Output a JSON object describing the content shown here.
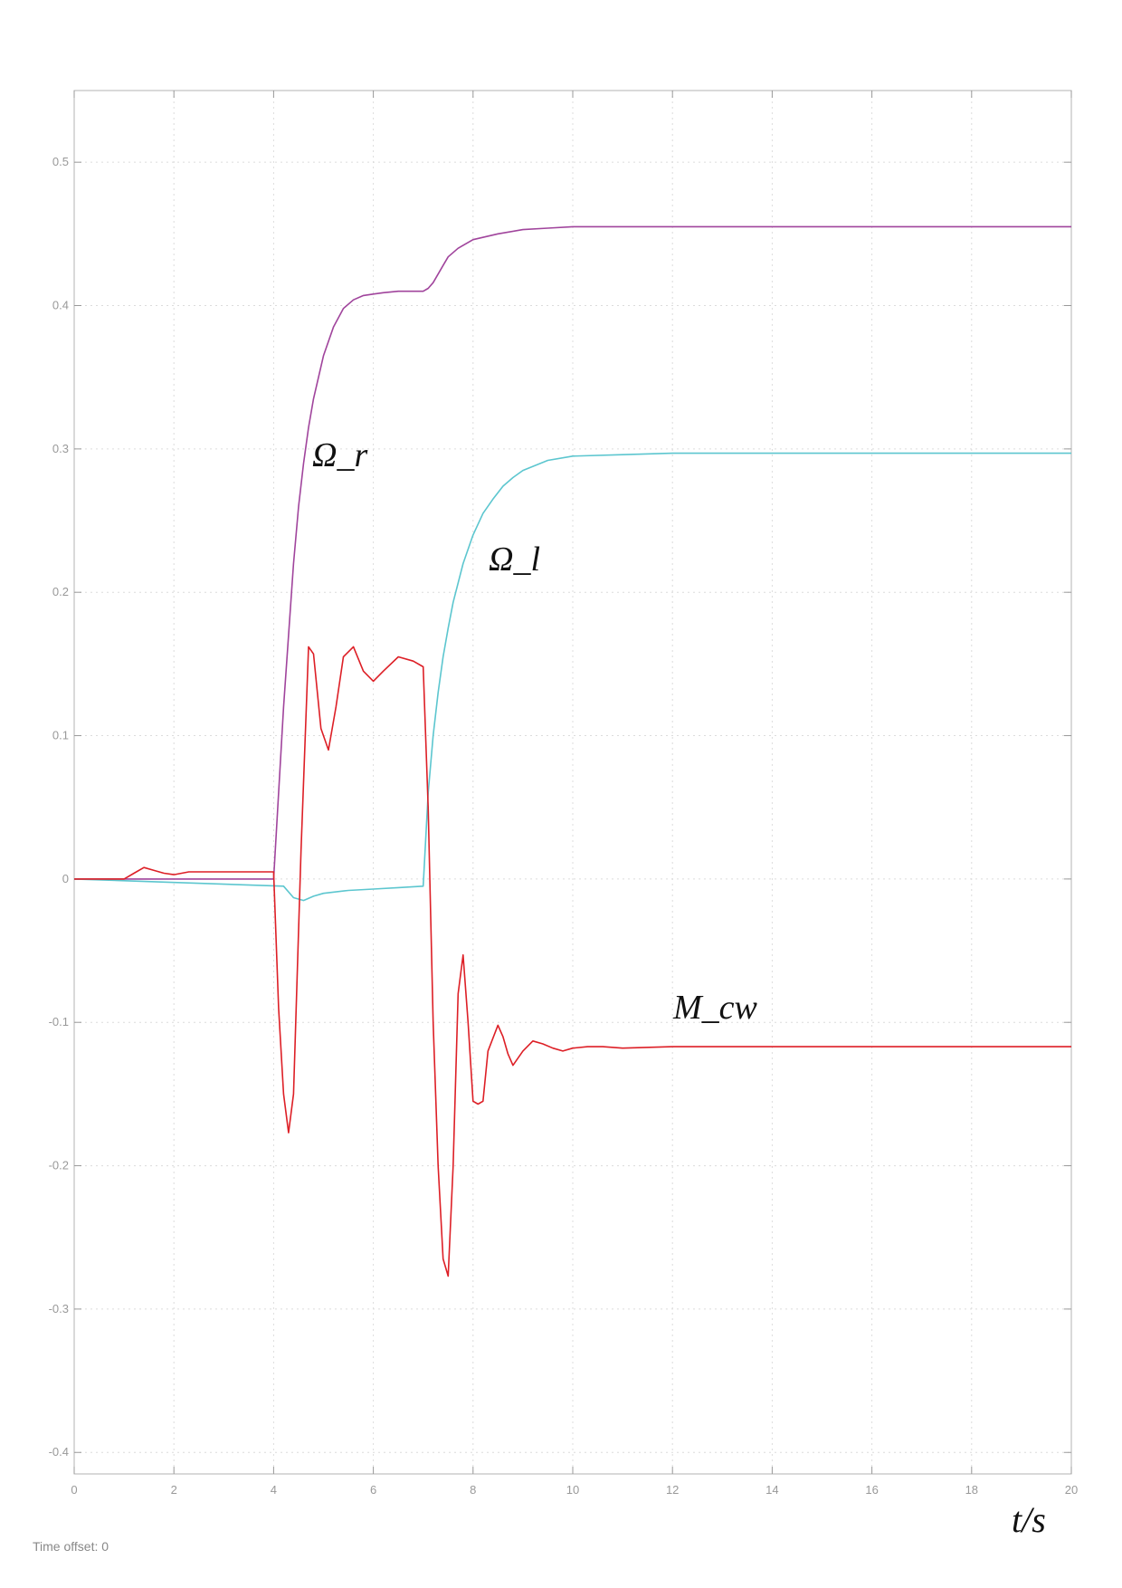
{
  "chart_data": {
    "type": "line",
    "xlabel": "t/s",
    "ylabel": "",
    "xlim": [
      0,
      20
    ],
    "ylim": [
      -0.415,
      0.55
    ],
    "grid": true,
    "x_ticks": [
      0,
      2,
      4,
      6,
      8,
      10,
      12,
      14,
      16,
      18,
      20
    ],
    "y_ticks": [
      -0.4,
      -0.3,
      -0.2,
      -0.1,
      0,
      0.1,
      0.2,
      0.3,
      0.4,
      0.5
    ],
    "x_tick_labels": [
      "0",
      "2",
      "4",
      "6",
      "8",
      "10",
      "12",
      "14",
      "16",
      "18",
      "20"
    ],
    "y_tick_labels": [
      "-0.4",
      "-0.3",
      "-0.2",
      "-0.1",
      "0",
      "0.1",
      "0.2",
      "0.3",
      "0.4",
      "0.5"
    ],
    "series": [
      {
        "name": "Ω_r",
        "color": "#a0449c",
        "x": [
          0,
          4,
          4.1,
          4.2,
          4.3,
          4.4,
          4.5,
          4.6,
          4.7,
          4.8,
          4.9,
          5.0,
          5.2,
          5.4,
          5.6,
          5.8,
          6.0,
          6.2,
          6.5,
          7.0,
          7.1,
          7.2,
          7.3,
          7.4,
          7.5,
          7.7,
          8.0,
          8.5,
          9.0,
          9.5,
          10,
          12,
          15,
          20
        ],
        "y": [
          0,
          0,
          0.06,
          0.12,
          0.17,
          0.22,
          0.26,
          0.29,
          0.315,
          0.335,
          0.35,
          0.365,
          0.385,
          0.398,
          0.404,
          0.407,
          0.408,
          0.409,
          0.41,
          0.41,
          0.412,
          0.416,
          0.422,
          0.428,
          0.434,
          0.44,
          0.446,
          0.45,
          0.453,
          0.454,
          0.455,
          0.455,
          0.455,
          0.455
        ]
      },
      {
        "name": "Ω_l",
        "color": "#5cc6cf",
        "x": [
          0,
          4.2,
          4.4,
          4.6,
          4.8,
          5.0,
          5.5,
          6.0,
          6.5,
          7.0,
          7.1,
          7.2,
          7.3,
          7.4,
          7.5,
          7.6,
          7.8,
          8.0,
          8.2,
          8.4,
          8.6,
          8.8,
          9.0,
          9.5,
          10,
          11,
          12,
          14,
          16,
          20
        ],
        "y": [
          0,
          -0.005,
          -0.013,
          -0.015,
          -0.012,
          -0.01,
          -0.008,
          -0.007,
          -0.006,
          -0.005,
          0.06,
          0.1,
          0.13,
          0.155,
          0.175,
          0.193,
          0.22,
          0.24,
          0.255,
          0.265,
          0.274,
          0.28,
          0.285,
          0.292,
          0.295,
          0.296,
          0.297,
          0.297,
          0.297,
          0.297
        ]
      },
      {
        "name": "M_cw",
        "color": "#dd1f26",
        "x": [
          0,
          1.0,
          1.2,
          1.4,
          1.6,
          1.8,
          2.0,
          2.3,
          2.7,
          3.0,
          3.5,
          4.0,
          4.1,
          4.2,
          4.3,
          4.4,
          4.55,
          4.7,
          4.8,
          4.95,
          5.1,
          5.25,
          5.4,
          5.6,
          5.8,
          6.0,
          6.2,
          6.5,
          6.8,
          7.0,
          7.1,
          7.2,
          7.3,
          7.4,
          7.5,
          7.6,
          7.7,
          7.8,
          7.9,
          8.0,
          8.1,
          8.2,
          8.3,
          8.5,
          8.6,
          8.7,
          8.8,
          9.0,
          9.2,
          9.4,
          9.6,
          9.8,
          10.0,
          10.3,
          10.6,
          11.0,
          12,
          14,
          16,
          18,
          20
        ],
        "y": [
          0,
          0,
          0.004,
          0.008,
          0.006,
          0.004,
          0.003,
          0.005,
          0.005,
          0.005,
          0.005,
          0.005,
          -0.09,
          -0.15,
          -0.177,
          -0.15,
          0.02,
          0.162,
          0.157,
          0.105,
          0.09,
          0.12,
          0.155,
          0.162,
          0.145,
          0.138,
          0.145,
          0.155,
          0.152,
          0.148,
          0.05,
          -0.1,
          -0.2,
          -0.265,
          -0.277,
          -0.2,
          -0.08,
          -0.053,
          -0.1,
          -0.155,
          -0.157,
          -0.155,
          -0.12,
          -0.102,
          -0.11,
          -0.122,
          -0.13,
          -0.12,
          -0.113,
          -0.115,
          -0.118,
          -0.12,
          -0.118,
          -0.117,
          -0.117,
          -0.118,
          -0.117,
          -0.117,
          -0.117,
          -0.117,
          -0.117
        ]
      }
    ]
  },
  "labels": {
    "omega_r": "Ω_r",
    "omega_l": "Ω_l",
    "m_cw": "M_cw",
    "x_axis_title": "t/s",
    "time_offset": "Time offset: 0"
  }
}
